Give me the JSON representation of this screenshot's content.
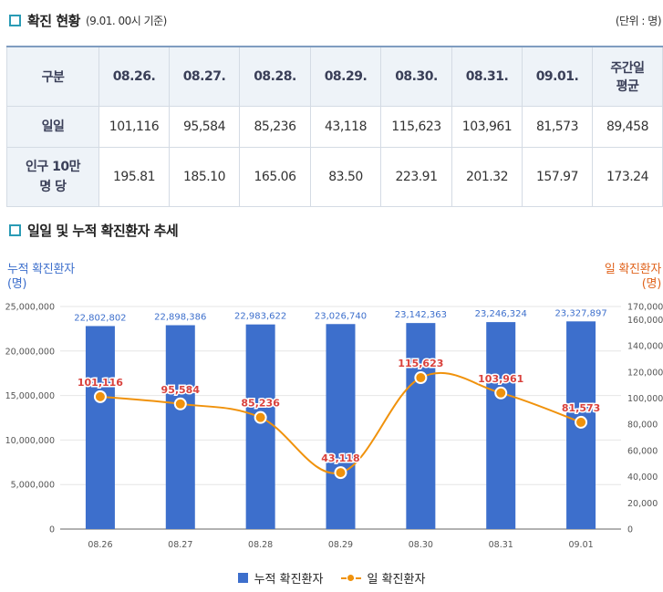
{
  "section1": {
    "title": "확진 현황",
    "subtitle": "(9.01. 00시 기준)",
    "unit": "(단위 : 명)"
  },
  "table": {
    "headers": [
      "구분",
      "08.26.",
      "08.27.",
      "08.28.",
      "08.29.",
      "08.30.",
      "08.31.",
      "09.01.",
      "주간일\n평균"
    ],
    "rows": [
      {
        "label": "일일",
        "values": [
          "101,116",
          "95,584",
          "85,236",
          "43,118",
          "115,623",
          "103,961",
          "81,573",
          "89,458"
        ]
      },
      {
        "label": "인구 10만\n명 당",
        "values": [
          "195.81",
          "185.10",
          "165.06",
          "83.50",
          "223.91",
          "201.32",
          "157.97",
          "173.24"
        ]
      }
    ]
  },
  "section2": {
    "title": "일일 및 누적 확진환자 추세"
  },
  "chart_data": {
    "type": "bar",
    "categories": [
      "08.26",
      "08.27",
      "08.28",
      "08.29",
      "08.30",
      "08.31",
      "09.01"
    ],
    "series": [
      {
        "name": "누적 확진환자",
        "type": "bar",
        "axis": "left",
        "values": [
          22802802,
          22898386,
          22983622,
          23026740,
          23142363,
          23246324,
          23327897
        ],
        "color": "#3d6fcc",
        "label_color": "#3d6fcc"
      },
      {
        "name": "일 확진환자",
        "type": "line",
        "axis": "right",
        "values": [
          101116,
          95584,
          85236,
          43118,
          115623,
          103961,
          81573
        ],
        "color": "#f0920c",
        "label_color": "#d9413c"
      }
    ],
    "y_left": {
      "title": "누적 확진환자\n(명)",
      "ticks": [
        0,
        5000000,
        10000000,
        15000000,
        20000000,
        25000000
      ],
      "ylim": [
        0,
        25000000
      ],
      "color": "#3d6fcc"
    },
    "y_right": {
      "title": "일 확진환자\n(명)",
      "ticks": [
        0,
        20000,
        40000,
        60000,
        80000,
        100000,
        120000,
        140000,
        160000,
        170000
      ],
      "ylim": [
        0,
        170000
      ],
      "color": "#e0641e"
    },
    "grid": true,
    "legend": "bottom-center"
  }
}
